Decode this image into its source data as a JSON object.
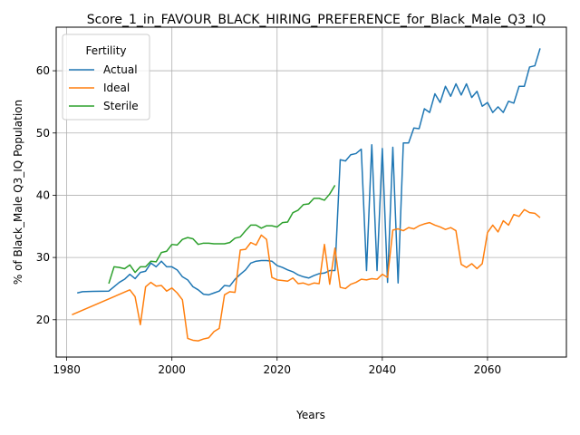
{
  "chart_data": {
    "type": "line",
    "title": "Score_1_in_FAVOUR_BLACK_HIRING_PREFERENCE_for_Black_Male_Q3_IQ",
    "xlabel": "Years",
    "ylabel": "% of Black_Male Q3_IQ Population",
    "xlim": [
      1978,
      2075
    ],
    "ylim": [
      14,
      67
    ],
    "xticks": [
      1980,
      2000,
      2020,
      2040,
      2060
    ],
    "yticks": [
      20,
      30,
      40,
      50,
      60
    ],
    "grid": true,
    "legend": {
      "title": "Fertility",
      "position": "top-left"
    },
    "series": [
      {
        "name": "Actual",
        "color": "#1f77b4",
        "points": [
          [
            1982,
            24.3
          ],
          [
            1983,
            24.5
          ],
          [
            1985,
            24.55
          ],
          [
            1988,
            24.6
          ],
          [
            1990,
            26.0
          ],
          [
            1991,
            26.5
          ],
          [
            1992,
            27.3
          ],
          [
            1993,
            26.6
          ],
          [
            1994,
            27.6
          ],
          [
            1995,
            27.8
          ],
          [
            1996,
            29.1
          ],
          [
            1997,
            28.5
          ],
          [
            1998,
            29.4
          ],
          [
            1999,
            28.5
          ],
          [
            2000,
            28.5
          ],
          [
            2001,
            28.0
          ],
          [
            2002,
            26.9
          ],
          [
            2003,
            26.4
          ],
          [
            2004,
            25.3
          ],
          [
            2005,
            24.8
          ],
          [
            2006,
            24.1
          ],
          [
            2007,
            24.0
          ],
          [
            2008,
            24.3
          ],
          [
            2009,
            24.6
          ],
          [
            2010,
            25.5
          ],
          [
            2011,
            25.4
          ],
          [
            2012,
            26.5
          ],
          [
            2013,
            27.3
          ],
          [
            2014,
            28.0
          ],
          [
            2015,
            29.1
          ],
          [
            2016,
            29.4
          ],
          [
            2017,
            29.5
          ],
          [
            2018,
            29.5
          ],
          [
            2019,
            29.4
          ],
          [
            2020,
            28.7
          ],
          [
            2021,
            28.4
          ],
          [
            2022,
            28.0
          ],
          [
            2023,
            27.7
          ],
          [
            2024,
            27.2
          ],
          [
            2025,
            26.9
          ],
          [
            2026,
            26.7
          ],
          [
            2027,
            27.1
          ],
          [
            2028,
            27.4
          ],
          [
            2029,
            27.5
          ],
          [
            2030,
            27.9
          ],
          [
            2031,
            27.9
          ],
          [
            2032,
            45.7
          ],
          [
            2033,
            45.5
          ],
          [
            2034,
            46.5
          ],
          [
            2035,
            46.7
          ],
          [
            2036,
            47.4
          ],
          [
            2037,
            27.9
          ],
          [
            2038,
            48.1
          ],
          [
            2039,
            27.9
          ],
          [
            2040,
            47.5
          ],
          [
            2041,
            26.0
          ],
          [
            2042,
            47.7
          ],
          [
            2043,
            25.9
          ],
          [
            2044,
            48.4
          ],
          [
            2045,
            48.4
          ],
          [
            2046,
            50.8
          ],
          [
            2047,
            50.7
          ],
          [
            2048,
            53.9
          ],
          [
            2049,
            53.3
          ],
          [
            2050,
            56.3
          ],
          [
            2051,
            54.9
          ],
          [
            2052,
            57.5
          ],
          [
            2053,
            55.9
          ],
          [
            2054,
            57.9
          ],
          [
            2055,
            56.1
          ],
          [
            2056,
            57.9
          ],
          [
            2057,
            55.7
          ],
          [
            2058,
            56.7
          ],
          [
            2059,
            54.3
          ],
          [
            2060,
            54.9
          ],
          [
            2061,
            53.3
          ],
          [
            2062,
            54.2
          ],
          [
            2063,
            53.3
          ],
          [
            2064,
            55.1
          ],
          [
            2065,
            54.8
          ],
          [
            2066,
            57.5
          ],
          [
            2067,
            57.5
          ],
          [
            2068,
            60.6
          ],
          [
            2069,
            60.8
          ],
          [
            2070,
            63.6
          ]
        ]
      },
      {
        "name": "Ideal",
        "color": "#ff7f0e",
        "points": [
          [
            1981,
            20.8
          ],
          [
            1992,
            24.8
          ],
          [
            1993,
            23.7
          ],
          [
            1994,
            19.2
          ],
          [
            1995,
            25.3
          ],
          [
            1996,
            26.0
          ],
          [
            1997,
            25.4
          ],
          [
            1998,
            25.5
          ],
          [
            1999,
            24.6
          ],
          [
            2000,
            25.1
          ],
          [
            2001,
            24.3
          ],
          [
            2002,
            23.2
          ],
          [
            2003,
            17.0
          ],
          [
            2004,
            16.7
          ],
          [
            2005,
            16.6
          ],
          [
            2006,
            16.9
          ],
          [
            2007,
            17.1
          ],
          [
            2008,
            18.1
          ],
          [
            2009,
            18.6
          ],
          [
            2010,
            24.0
          ],
          [
            2011,
            24.5
          ],
          [
            2012,
            24.4
          ],
          [
            2013,
            31.2
          ],
          [
            2014,
            31.3
          ],
          [
            2015,
            32.4
          ],
          [
            2016,
            32.0
          ],
          [
            2017,
            33.6
          ],
          [
            2018,
            32.9
          ],
          [
            2019,
            26.8
          ],
          [
            2020,
            26.4
          ],
          [
            2021,
            26.3
          ],
          [
            2022,
            26.2
          ],
          [
            2023,
            26.7
          ],
          [
            2024,
            25.8
          ],
          [
            2025,
            25.9
          ],
          [
            2026,
            25.6
          ],
          [
            2027,
            25.9
          ],
          [
            2028,
            25.8
          ],
          [
            2029,
            32.1
          ],
          [
            2030,
            25.7
          ],
          [
            2031,
            31.5
          ],
          [
            2032,
            25.2
          ],
          [
            2033,
            25.0
          ],
          [
            2034,
            25.7
          ],
          [
            2035,
            26.0
          ],
          [
            2036,
            26.5
          ],
          [
            2037,
            26.4
          ],
          [
            2038,
            26.6
          ],
          [
            2039,
            26.5
          ],
          [
            2040,
            27.3
          ],
          [
            2041,
            26.8
          ],
          [
            2042,
            34.4
          ],
          [
            2043,
            34.6
          ],
          [
            2044,
            34.3
          ],
          [
            2045,
            34.8
          ],
          [
            2046,
            34.6
          ],
          [
            2047,
            35.1
          ],
          [
            2048,
            35.4
          ],
          [
            2049,
            35.6
          ],
          [
            2050,
            35.2
          ],
          [
            2051,
            34.9
          ],
          [
            2052,
            34.5
          ],
          [
            2053,
            34.8
          ],
          [
            2054,
            34.3
          ],
          [
            2055,
            28.9
          ],
          [
            2056,
            28.4
          ],
          [
            2057,
            29.0
          ],
          [
            2058,
            28.2
          ],
          [
            2059,
            29.0
          ],
          [
            2060,
            34.0
          ],
          [
            2061,
            35.2
          ],
          [
            2062,
            34.1
          ],
          [
            2063,
            35.9
          ],
          [
            2064,
            35.2
          ],
          [
            2065,
            36.9
          ],
          [
            2066,
            36.6
          ],
          [
            2067,
            37.7
          ],
          [
            2068,
            37.2
          ],
          [
            2069,
            37.1
          ],
          [
            2070,
            36.4
          ]
        ]
      },
      {
        "name": "Sterile",
        "color": "#2ca02c",
        "points": [
          [
            1988,
            25.8
          ],
          [
            1989,
            28.5
          ],
          [
            1990,
            28.4
          ],
          [
            1991,
            28.2
          ],
          [
            1992,
            28.8
          ],
          [
            1993,
            27.6
          ],
          [
            1994,
            28.5
          ],
          [
            1995,
            28.5
          ],
          [
            1996,
            29.4
          ],
          [
            1997,
            29.3
          ],
          [
            1998,
            30.8
          ],
          [
            1999,
            31.0
          ],
          [
            2000,
            32.1
          ],
          [
            2001,
            32.0
          ],
          [
            2002,
            32.9
          ],
          [
            2003,
            33.2
          ],
          [
            2004,
            33.0
          ],
          [
            2005,
            32.1
          ],
          [
            2006,
            32.3
          ],
          [
            2007,
            32.3
          ],
          [
            2008,
            32.2
          ],
          [
            2009,
            32.2
          ],
          [
            2010,
            32.2
          ],
          [
            2011,
            32.4
          ],
          [
            2012,
            33.1
          ],
          [
            2013,
            33.3
          ],
          [
            2014,
            34.3
          ],
          [
            2015,
            35.2
          ],
          [
            2016,
            35.2
          ],
          [
            2017,
            34.7
          ],
          [
            2018,
            35.1
          ],
          [
            2019,
            35.1
          ],
          [
            2020,
            34.9
          ],
          [
            2021,
            35.6
          ],
          [
            2022,
            35.7
          ],
          [
            2023,
            37.2
          ],
          [
            2024,
            37.6
          ],
          [
            2025,
            38.5
          ],
          [
            2026,
            38.6
          ],
          [
            2027,
            39.5
          ],
          [
            2028,
            39.5
          ],
          [
            2029,
            39.2
          ],
          [
            2030,
            40.2
          ],
          [
            2031,
            41.6
          ]
        ]
      }
    ]
  }
}
